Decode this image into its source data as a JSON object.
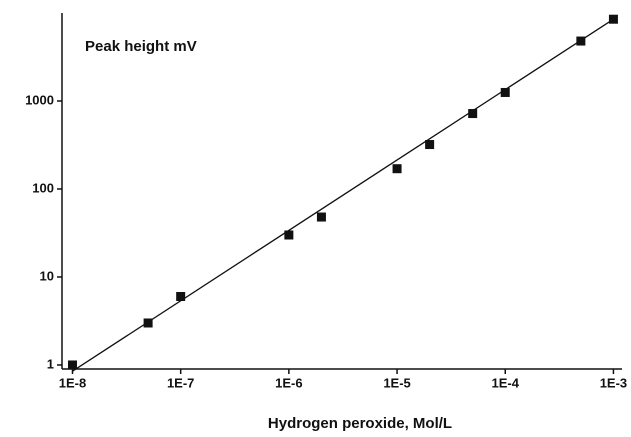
{
  "chart_data": {
    "type": "scatter",
    "title": "Peak height mV",
    "x_label": "Hydrogen peroxide, Mol/L",
    "x": [
      1e-08,
      5e-08,
      1e-07,
      1e-06,
      2e-06,
      1e-05,
      2e-05,
      5e-05,
      0.0001,
      0.0005,
      0.001
    ],
    "values": [
      1,
      3,
      6,
      30,
      48,
      170,
      320,
      720,
      1250,
      4800,
      8500
    ],
    "color": "#111111",
    "fit_line": {
      "x": [
        1e-08,
        0.001
      ],
      "values": [
        0.85,
        8500
      ]
    },
    "log_x": true,
    "log_y": true,
    "xlim": [
      8e-09,
      0.0012
    ],
    "ylim": [
      0.9,
      10000
    ],
    "xticks": [
      {
        "value": 1e-08,
        "label": "1E-8"
      },
      {
        "value": 1e-07,
        "label": "1E-7"
      },
      {
        "value": 1e-06,
        "label": "1E-6"
      },
      {
        "value": 1e-05,
        "label": "1E-5"
      },
      {
        "value": 0.0001,
        "label": "1E-4"
      },
      {
        "value": 0.001,
        "label": "1E-3"
      }
    ],
    "yticks": [
      1,
      10,
      100,
      1000
    ],
    "grid": false
  }
}
